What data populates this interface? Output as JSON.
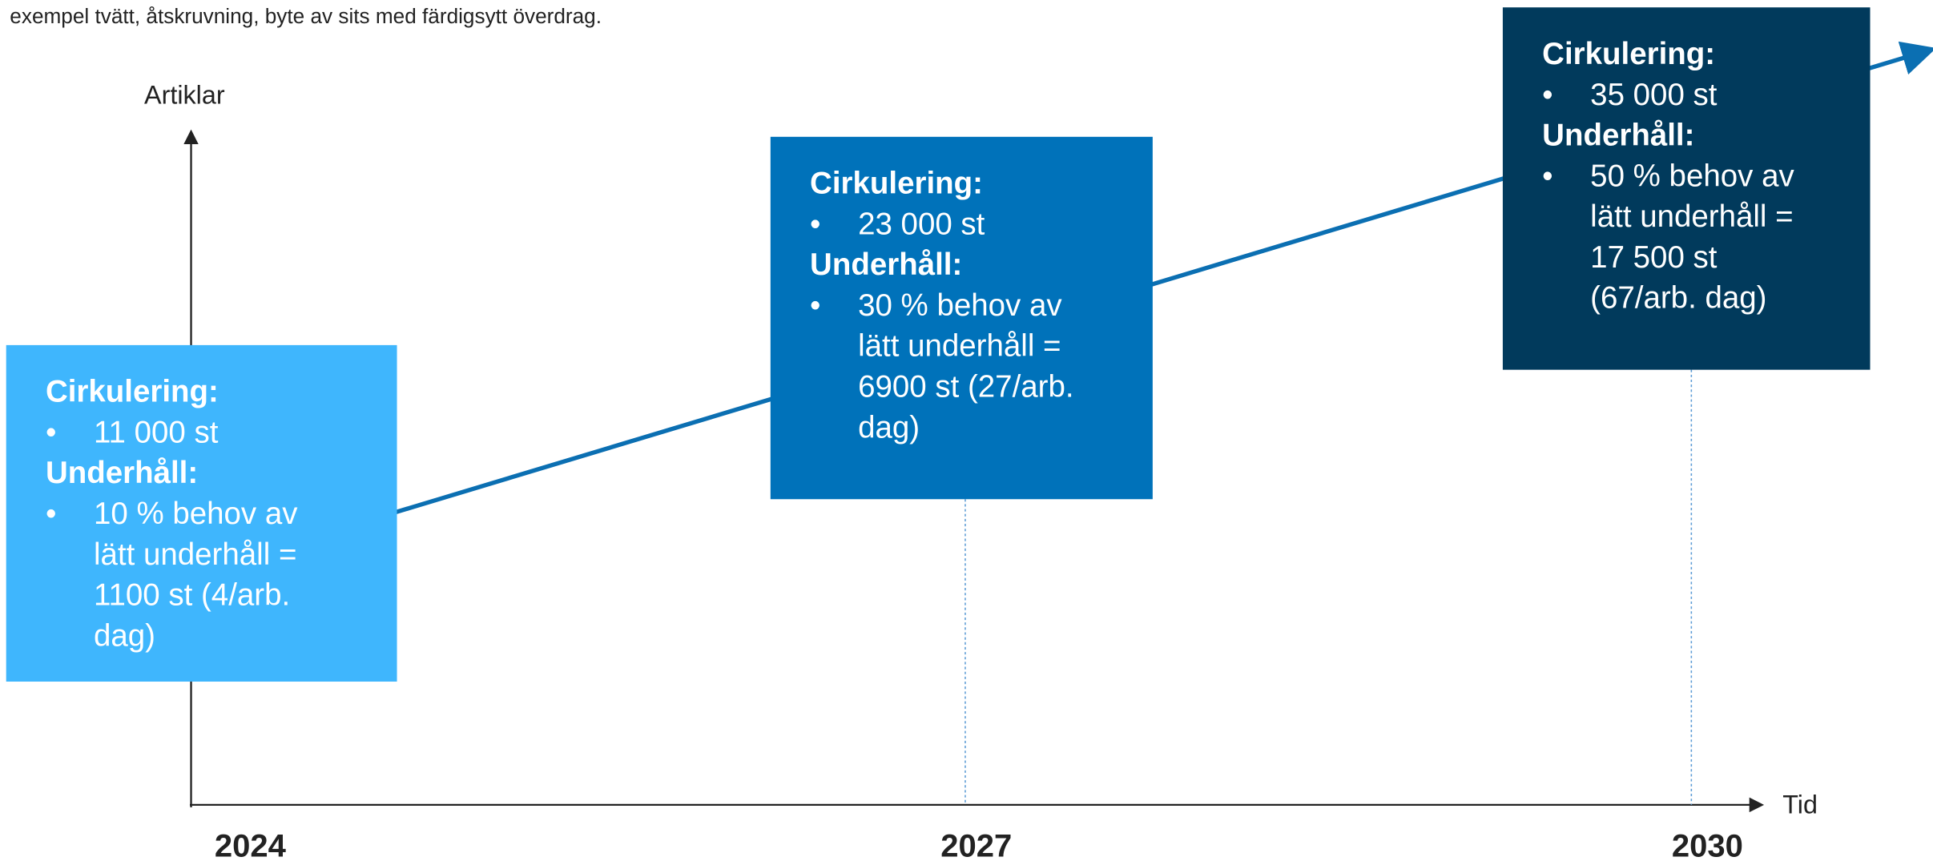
{
  "intro": "exempel tvätt, åtskruvning, byte av sits med färdigsytt överdrag.",
  "y_axis_label": "Artiklar",
  "x_axis_label": "Tid",
  "years": [
    "2024",
    "2027",
    "2030"
  ],
  "boxes": [
    {
      "title1": "Cirkulering:",
      "item1": "11 000 st",
      "title2": "Underhåll:",
      "item2": "10 % behov av lätt underhåll = 1100 st (4/arb. dag)"
    },
    {
      "title1": "Cirkulering:",
      "item1": "23 000 st",
      "title2": "Underhåll:",
      "item2": "30 % behov av lätt underhåll = 6900 st (27/arb. dag)"
    },
    {
      "title1": "Cirkulering:",
      "item1": "35 000 st",
      "title2": "Underhåll:",
      "item2": "50 % behov av lätt underhåll = 17 500 st (67/arb. dag)"
    }
  ]
}
